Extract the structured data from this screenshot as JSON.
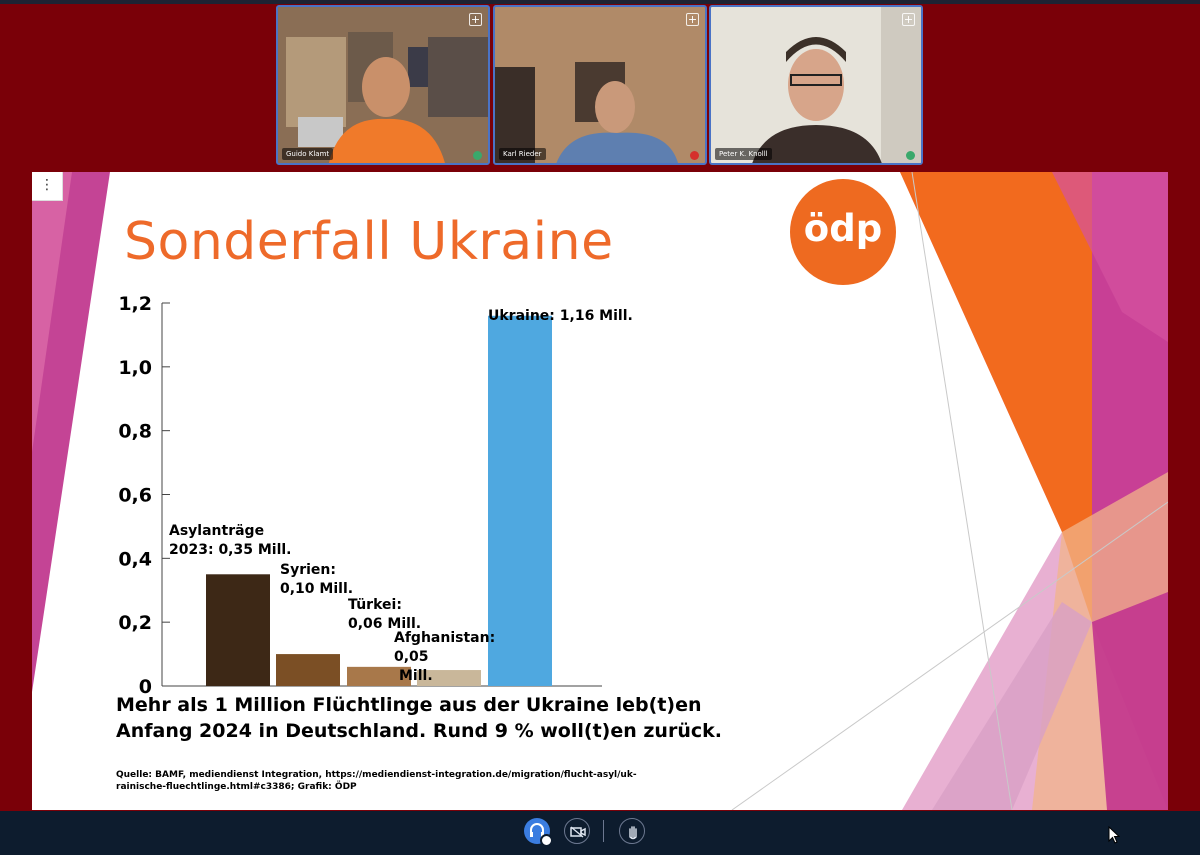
{
  "participants": [
    {
      "name": "Guido Klamt",
      "muted": false
    },
    {
      "name": "Karl Rieder",
      "muted": true
    },
    {
      "name": "Peter K. Knolll",
      "muted": false
    }
  ],
  "slide": {
    "menu_icon": "more-vertical-icon",
    "title": "Sonderfall Ukraine",
    "logo_text": "ödp",
    "note_line1": "Mehr als 1 Million Flüchtlinge aus der Ukraine leb(t)en",
    "note_line2": "Anfang 2024 in Deutschland. Rund 9 % woll(t)en zurück.",
    "source_line1": "Quelle: BAMF, mediendienst Integration, https://mediendienst-integration.de/migration/flucht-asyl/uk-",
    "source_line2": "rainische-fluechtlinge.html#c3386; Grafik: ÖDP"
  },
  "chart_data": {
    "type": "bar",
    "title": "",
    "xlabel": "",
    "ylabel": "",
    "ylim": [
      0,
      1.2
    ],
    "yticks": [
      "0",
      "0,2",
      "0,4",
      "0,6",
      "0,8",
      "1,0",
      "1,2"
    ],
    "categories": [
      "Asylanträge 2023",
      "Syrien",
      "Türkei",
      "Afghanistan",
      "Ukraine"
    ],
    "values": [
      0.35,
      0.1,
      0.06,
      0.05,
      1.16
    ],
    "colors": [
      "#3d2816",
      "#7b4f25",
      "#a8784a",
      "#c9b79a",
      "#4fa8e0"
    ],
    "labels": [
      [
        "Asylanträge",
        "2023: 0,35 Mill."
      ],
      [
        "Syrien:",
        "0,10 Mill."
      ],
      [
        "Türkei:",
        "0,06 Mill."
      ],
      [
        "Afghanistan:",
        "0,05",
        "Mill."
      ],
      [
        "Ukraine: 1,16 Mill."
      ]
    ]
  },
  "toolbar": {
    "audio_icon": "headset-icon",
    "video_icon": "camera-off-icon",
    "hand_icon": "raise-hand-icon"
  },
  "colors": {
    "background": "#7a0008",
    "accent": "#ee6a2a",
    "bottom_bar": "#0d1c2e"
  }
}
